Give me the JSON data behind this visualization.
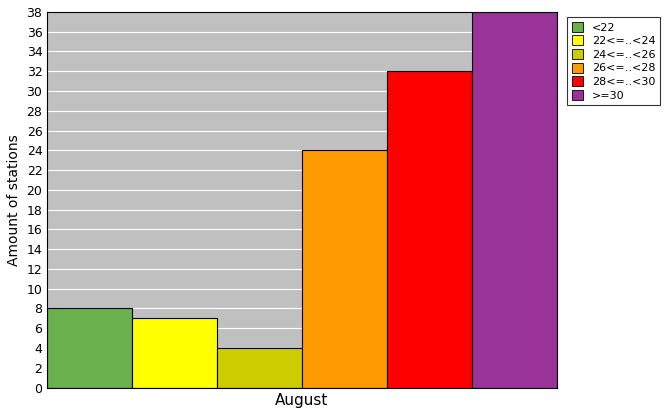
{
  "xlabel": "August",
  "ylabel": "Amount of stations",
  "categories": [
    "<22",
    "22<=..<24",
    "24<=..<26",
    "26<=..<28",
    "28<=..<30",
    ">=30"
  ],
  "values": [
    8,
    7,
    4,
    24,
    32,
    38
  ],
  "colors": [
    "#6ab04c",
    "#ffff00",
    "#cccc00",
    "#ff9900",
    "#ff0000",
    "#993399"
  ],
  "ylim": [
    0,
    38
  ],
  "yticks": [
    0,
    2,
    4,
    6,
    8,
    10,
    12,
    14,
    16,
    18,
    20,
    22,
    24,
    26,
    28,
    30,
    32,
    34,
    36,
    38
  ],
  "bar_width": 1.0,
  "bg_color": "#c0c0c0",
  "legend_labels": [
    "<22",
    "22<=..<24",
    "24<=..<26",
    "26<=..<28",
    "28<=..<30",
    ">=30"
  ]
}
